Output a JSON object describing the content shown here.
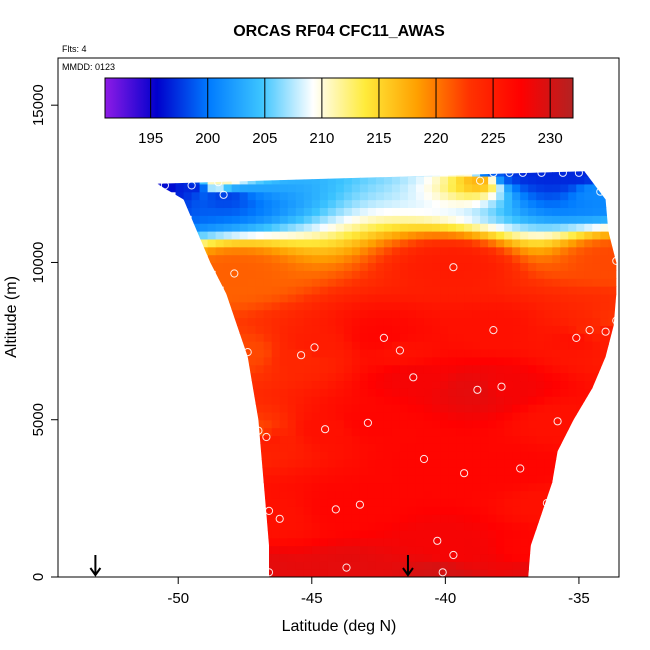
{
  "chart_data": {
    "type": "heatmap",
    "title": "ORCAS RF04 CFC11_AWAS",
    "annotations": {
      "flights": "Flts: 4",
      "date": "MMDD: 0123"
    },
    "xlabel": "Latitude (deg N)",
    "ylabel": "Altitude (m)",
    "xlim": [
      -54.5,
      -33.5
    ],
    "ylim": [
      0,
      16500
    ],
    "x_ticks": [
      -50,
      -45,
      -40,
      -35
    ],
    "x_tick_labels": [
      "-50",
      "-45",
      "-40",
      "-35"
    ],
    "y_ticks": [
      0,
      5000,
      10000,
      15000
    ],
    "y_tick_labels": [
      "0",
      "5000",
      "10000",
      "15000"
    ],
    "colorbar": {
      "min": 191,
      "max": 232,
      "ticks": [
        195,
        200,
        205,
        210,
        215,
        220,
        225,
        230
      ],
      "tick_labels": [
        "195",
        "200",
        "205",
        "210",
        "215",
        "220",
        "225",
        "230"
      ],
      "colors": [
        "#8e1be6",
        "#0000cc",
        "#007bff",
        "#3cc4ff",
        "#ffffff",
        "#ffeb3b",
        "#ffa000",
        "#ff3300",
        "#ff0000",
        "#b32222"
      ]
    },
    "field": {
      "left_boundary": [
        [
          12500,
          -50.8
        ],
        [
          12000,
          -49.8
        ],
        [
          11000,
          -49.3
        ],
        [
          10000,
          -48.8
        ],
        [
          9000,
          -48.2
        ],
        [
          8000,
          -47.8
        ],
        [
          7000,
          -47.4
        ],
        [
          6000,
          -47.2
        ],
        [
          5000,
          -47.0
        ],
        [
          4000,
          -46.9
        ],
        [
          3000,
          -46.8
        ],
        [
          2000,
          -46.7
        ],
        [
          1000,
          -46.6
        ],
        [
          0,
          -46.6
        ]
      ],
      "right_boundary": [
        [
          12900,
          -34.8
        ],
        [
          12000,
          -34.0
        ],
        [
          11000,
          -33.9
        ],
        [
          10000,
          -33.6
        ],
        [
          9000,
          -33.6
        ],
        [
          8000,
          -33.7
        ],
        [
          7000,
          -34.0
        ],
        [
          6000,
          -34.5
        ],
        [
          5000,
          -35.2
        ],
        [
          4000,
          -35.8
        ],
        [
          3000,
          -36.0
        ],
        [
          2000,
          -36.4
        ],
        [
          1000,
          -36.8
        ],
        [
          0,
          -36.9
        ]
      ]
    },
    "samples": [
      {
        "lat": -50.9,
        "alt": 12450,
        "value": 195
      },
      {
        "lat": -50.5,
        "alt": 12450,
        "value": 196
      },
      {
        "lat": -49.5,
        "alt": 12450,
        "value": 197
      },
      {
        "lat": -48.5,
        "alt": 12550,
        "value": 211
      },
      {
        "lat": -48.3,
        "alt": 12150,
        "value": 198
      },
      {
        "lat": -38.7,
        "alt": 12600,
        "value": 217
      },
      {
        "lat": -38.2,
        "alt": 12850,
        "value": 199
      },
      {
        "lat": -37.6,
        "alt": 12850,
        "value": 198
      },
      {
        "lat": -37.1,
        "alt": 12850,
        "value": 197
      },
      {
        "lat": -36.4,
        "alt": 12850,
        "value": 197
      },
      {
        "lat": -35.6,
        "alt": 12850,
        "value": 197
      },
      {
        "lat": -35.0,
        "alt": 12850,
        "value": 197
      },
      {
        "lat": -34.2,
        "alt": 12250,
        "value": 201
      },
      {
        "lat": -47.9,
        "alt": 9650,
        "value": 221
      },
      {
        "lat": -39.7,
        "alt": 9850,
        "value": 225
      },
      {
        "lat": -33.6,
        "alt": 10050,
        "value": 222
      },
      {
        "lat": -38.2,
        "alt": 7850,
        "value": 226
      },
      {
        "lat": -34.6,
        "alt": 7850,
        "value": 224
      },
      {
        "lat": -34.0,
        "alt": 7800,
        "value": 225
      },
      {
        "lat": -33.6,
        "alt": 8150,
        "value": 223
      },
      {
        "lat": -35.1,
        "alt": 7600,
        "value": 226
      },
      {
        "lat": -47.4,
        "alt": 7150,
        "value": 222
      },
      {
        "lat": -45.4,
        "alt": 7050,
        "value": 224
      },
      {
        "lat": -44.9,
        "alt": 7300,
        "value": 225
      },
      {
        "lat": -42.3,
        "alt": 7600,
        "value": 227
      },
      {
        "lat": -41.7,
        "alt": 7200,
        "value": 226
      },
      {
        "lat": -41.2,
        "alt": 6350,
        "value": 228
      },
      {
        "lat": -38.8,
        "alt": 5950,
        "value": 229
      },
      {
        "lat": -37.9,
        "alt": 6050,
        "value": 228
      },
      {
        "lat": -47.0,
        "alt": 4650,
        "value": 222
      },
      {
        "lat": -46.7,
        "alt": 4450,
        "value": 225
      },
      {
        "lat": -44.5,
        "alt": 4700,
        "value": 226
      },
      {
        "lat": -42.9,
        "alt": 4900,
        "value": 227
      },
      {
        "lat": -35.8,
        "alt": 4950,
        "value": 226
      },
      {
        "lat": -40.8,
        "alt": 3750,
        "value": 227
      },
      {
        "lat": -39.3,
        "alt": 3300,
        "value": 227
      },
      {
        "lat": -37.2,
        "alt": 3450,
        "value": 227
      },
      {
        "lat": -46.6,
        "alt": 2100,
        "value": 226
      },
      {
        "lat": -46.2,
        "alt": 1850,
        "value": 226
      },
      {
        "lat": -44.1,
        "alt": 2150,
        "value": 227
      },
      {
        "lat": -43.2,
        "alt": 2300,
        "value": 227
      },
      {
        "lat": -36.2,
        "alt": 2350,
        "value": 226
      },
      {
        "lat": -40.3,
        "alt": 1150,
        "value": 228
      },
      {
        "lat": -39.7,
        "alt": 700,
        "value": 228
      },
      {
        "lat": -36.6,
        "alt": 850,
        "value": 227
      },
      {
        "lat": -46.6,
        "alt": 150,
        "value": 229
      },
      {
        "lat": -43.7,
        "alt": 300,
        "value": 229
      },
      {
        "lat": -40.1,
        "alt": 150,
        "value": 230
      },
      {
        "lat": -36.4,
        "alt": 150,
        "value": 229
      }
    ],
    "arrows": [
      {
        "lat": -53.1
      },
      {
        "lat": -41.4
      }
    ]
  }
}
